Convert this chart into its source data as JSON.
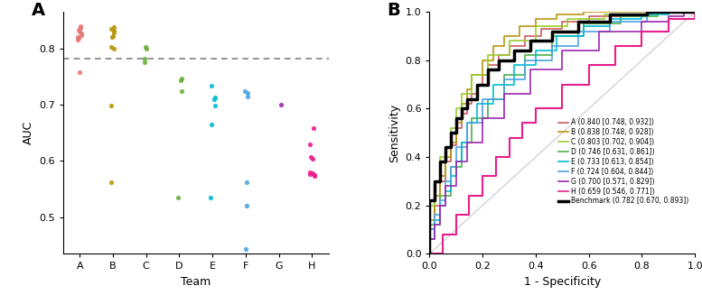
{
  "panel_A": {
    "teams": [
      "A",
      "B",
      "C",
      "D",
      "E",
      "F",
      "G",
      "H"
    ],
    "team_colors": {
      "A": "#E87878",
      "B": "#B8960C",
      "C": "#6AAF3D",
      "D": "#6AAF3D",
      "E": "#00BCD4",
      "F": "#4BA3E3",
      "G": "#9C27B0",
      "H": "#E91E8C"
    },
    "auc_values": {
      "A": [
        0.84,
        0.836,
        0.833,
        0.83,
        0.827,
        0.823,
        0.821,
        0.818,
        0.815,
        0.757
      ],
      "B": [
        0.838,
        0.835,
        0.832,
        0.828,
        0.822,
        0.82,
        0.803,
        0.8,
        0.698,
        0.562
      ],
      "C": [
        0.803,
        0.8,
        0.782,
        0.775
      ],
      "D": [
        0.746,
        0.744,
        0.724,
        0.535
      ],
      "E": [
        0.733,
        0.713,
        0.71,
        0.699,
        0.665,
        0.535
      ],
      "F": [
        0.724,
        0.72,
        0.714,
        0.562,
        0.52,
        0.443
      ],
      "G": [
        0.7
      ],
      "H": [
        0.659,
        0.63,
        0.607,
        0.603,
        0.58,
        0.578,
        0.577,
        0.575,
        0.573
      ]
    },
    "benchmark_auc": 0.782,
    "ylabel": "AUC",
    "xlabel": "Team",
    "ylim": [
      0.435,
      0.865
    ],
    "yticks": [
      0.5,
      0.6,
      0.7,
      0.8
    ]
  },
  "panel_B": {
    "legend_entries": [
      {
        "label": "A (0.840 [0.748, 0.932])",
        "color": "#CD5C5C"
      },
      {
        "label": "B (0.838 [0.748, 0.928])",
        "color": "#B8960C"
      },
      {
        "label": "C (0.803 [0.702, 0.904])",
        "color": "#9ACD32"
      },
      {
        "label": "D (0.746 [0.631, 0.861])",
        "color": "#4DAF4A"
      },
      {
        "label": "E (0.733 [0.613, 0.854])",
        "color": "#00BCD4"
      },
      {
        "label": "F (0.724 [0.604, 0.844])",
        "color": "#4BA3E3"
      },
      {
        "label": "G (0.700 [0.571, 0.829])",
        "color": "#9C27B0"
      },
      {
        "label": "H (0.659 [0.546, 0.771])",
        "color": "#E91E8C"
      },
      {
        "label": "Benchmark (0.782 [0.670, 0.893])",
        "color": "#000000"
      }
    ],
    "xlabel": "1 - Specificity",
    "ylabel": "Sensitivity",
    "roc_A_fpr": [
      0.0,
      0.0,
      0.02,
      0.02,
      0.04,
      0.04,
      0.06,
      0.06,
      0.08,
      0.08,
      0.1,
      0.1,
      0.12,
      0.12,
      0.14,
      0.16,
      0.18,
      0.2,
      0.22,
      0.26,
      0.3,
      0.36,
      0.42,
      0.5,
      0.6,
      0.72,
      0.84,
      1.0
    ],
    "roc_A_tpr": [
      0.0,
      0.1,
      0.1,
      0.2,
      0.2,
      0.3,
      0.3,
      0.38,
      0.38,
      0.45,
      0.45,
      0.52,
      0.52,
      0.58,
      0.62,
      0.66,
      0.7,
      0.74,
      0.78,
      0.82,
      0.86,
      0.9,
      0.93,
      0.96,
      0.98,
      0.99,
      1.0,
      1.0
    ],
    "roc_A_color": "#CD5C5C",
    "roc_B_fpr": [
      0.0,
      0.0,
      0.02,
      0.02,
      0.04,
      0.04,
      0.06,
      0.06,
      0.08,
      0.1,
      0.12,
      0.14,
      0.16,
      0.2,
      0.24,
      0.28,
      0.34,
      0.4,
      0.48,
      0.58,
      0.7,
      0.84,
      1.0
    ],
    "roc_B_tpr": [
      0.0,
      0.14,
      0.14,
      0.24,
      0.24,
      0.32,
      0.32,
      0.4,
      0.46,
      0.54,
      0.62,
      0.68,
      0.74,
      0.8,
      0.86,
      0.9,
      0.94,
      0.97,
      0.99,
      1.0,
      1.0,
      1.0,
      1.0
    ],
    "roc_B_color": "#B8960C",
    "roc_C_fpr": [
      0.0,
      0.0,
      0.02,
      0.02,
      0.04,
      0.04,
      0.06,
      0.08,
      0.1,
      0.12,
      0.16,
      0.22,
      0.3,
      0.4,
      0.52,
      0.66,
      0.82,
      1.0
    ],
    "roc_C_tpr": [
      0.0,
      0.2,
      0.2,
      0.3,
      0.3,
      0.4,
      0.44,
      0.52,
      0.6,
      0.66,
      0.74,
      0.82,
      0.88,
      0.94,
      0.97,
      0.99,
      1.0,
      1.0
    ],
    "roc_C_color": "#9ACD32",
    "roc_D_fpr": [
      0.0,
      0.0,
      0.04,
      0.04,
      0.08,
      0.08,
      0.12,
      0.16,
      0.22,
      0.28,
      0.36,
      0.46,
      0.58,
      0.72,
      0.86,
      1.0
    ],
    "roc_D_tpr": [
      0.0,
      0.12,
      0.12,
      0.24,
      0.24,
      0.36,
      0.46,
      0.56,
      0.64,
      0.74,
      0.82,
      0.9,
      0.95,
      0.98,
      1.0,
      1.0
    ],
    "roc_D_color": "#4DAF4A",
    "roc_E_fpr": [
      0.0,
      0.0,
      0.02,
      0.02,
      0.04,
      0.06,
      0.08,
      0.1,
      0.12,
      0.14,
      0.18,
      0.24,
      0.32,
      0.4,
      0.48,
      0.58,
      0.68,
      0.8,
      0.9,
      0.96,
      1.0
    ],
    "roc_E_tpr": [
      0.0,
      0.06,
      0.06,
      0.14,
      0.2,
      0.26,
      0.32,
      0.38,
      0.46,
      0.54,
      0.62,
      0.7,
      0.78,
      0.84,
      0.9,
      0.94,
      0.97,
      0.99,
      1.0,
      1.0,
      1.0
    ],
    "roc_E_color": "#00BCD4",
    "roc_F_fpr": [
      0.0,
      0.0,
      0.02,
      0.04,
      0.06,
      0.08,
      0.1,
      0.14,
      0.2,
      0.28,
      0.36,
      0.46,
      0.56,
      0.68,
      0.82,
      1.0
    ],
    "roc_F_tpr": [
      0.0,
      0.1,
      0.16,
      0.22,
      0.3,
      0.36,
      0.44,
      0.54,
      0.64,
      0.72,
      0.8,
      0.86,
      0.92,
      0.96,
      1.0,
      1.0
    ],
    "roc_F_color": "#4BA3E3",
    "roc_G_fpr": [
      0.0,
      0.0,
      0.02,
      0.04,
      0.06,
      0.1,
      0.14,
      0.2,
      0.28,
      0.38,
      0.5,
      0.64,
      0.8,
      0.9,
      0.96,
      1.0
    ],
    "roc_G_tpr": [
      0.0,
      0.06,
      0.12,
      0.2,
      0.28,
      0.38,
      0.46,
      0.56,
      0.66,
      0.76,
      0.84,
      0.92,
      0.96,
      0.98,
      1.0,
      1.0
    ],
    "roc_G_color": "#9C27B0",
    "roc_H_fpr": [
      0.0,
      0.05,
      0.1,
      0.15,
      0.2,
      0.25,
      0.3,
      0.35,
      0.4,
      0.5,
      0.6,
      0.7,
      0.8,
      0.9,
      1.0
    ],
    "roc_H_tpr": [
      0.0,
      0.08,
      0.16,
      0.24,
      0.32,
      0.4,
      0.48,
      0.54,
      0.6,
      0.7,
      0.78,
      0.86,
      0.92,
      0.97,
      1.0
    ],
    "roc_H_color": "#E91E8C",
    "roc_BM_fpr": [
      0.0,
      0.0,
      0.02,
      0.02,
      0.04,
      0.04,
      0.06,
      0.06,
      0.08,
      0.1,
      0.12,
      0.14,
      0.18,
      0.22,
      0.26,
      0.32,
      0.38,
      0.46,
      0.56,
      0.68,
      0.82,
      1.0
    ],
    "roc_BM_tpr": [
      0.0,
      0.22,
      0.22,
      0.3,
      0.3,
      0.38,
      0.38,
      0.44,
      0.5,
      0.56,
      0.6,
      0.64,
      0.7,
      0.76,
      0.8,
      0.84,
      0.88,
      0.92,
      0.96,
      0.99,
      1.0,
      1.0
    ],
    "roc_BM_color": "#000000"
  }
}
